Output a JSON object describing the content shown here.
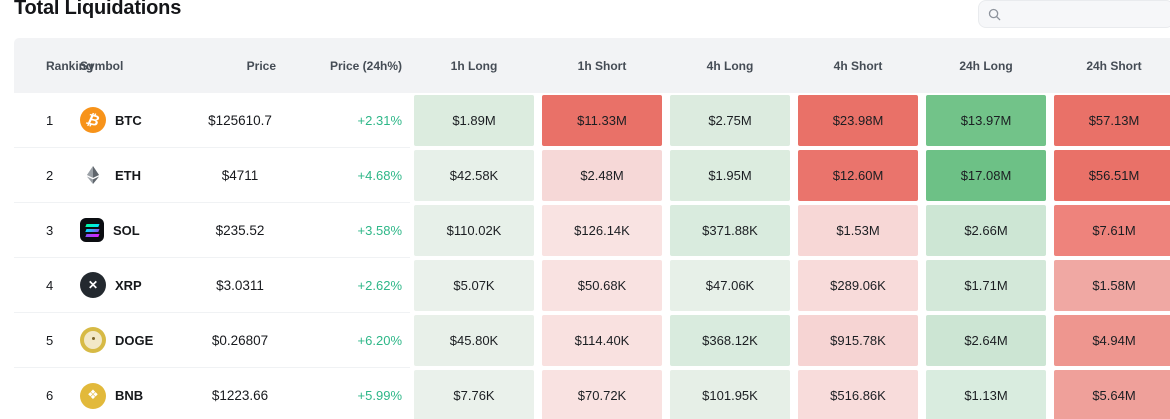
{
  "page": {
    "title": "Total Liquidations"
  },
  "search": {
    "placeholder": "",
    "icon": "search-icon"
  },
  "colors": {
    "positive_change": "#2eb788",
    "long_full": "#72c389",
    "short_full": "#e97168",
    "header_bg": "#f2f3f5"
  },
  "table": {
    "columns": [
      "Ranking",
      "Symbol",
      "Price",
      "Price (24h%)",
      "1h Long",
      "1h Short",
      "4h Long",
      "4h Short",
      "24h Long",
      "24h Short"
    ],
    "rows": [
      {
        "rank": "1",
        "symbol": "BTC",
        "icon": "btc-icon",
        "price": "$125610.7",
        "change": "+2.31%",
        "cells": [
          {
            "text": "$1.89M",
            "bg": "#dcecdf"
          },
          {
            "text": "$11.33M",
            "bg": "#e97168"
          },
          {
            "text": "$2.75M",
            "bg": "#dcebdf"
          },
          {
            "text": "$23.98M",
            "bg": "#e97168"
          },
          {
            "text": "$13.97M",
            "bg": "#72c389"
          },
          {
            "text": "$57.13M",
            "bg": "#e97168"
          }
        ]
      },
      {
        "rank": "2",
        "symbol": "ETH",
        "icon": "eth-icon",
        "price": "$4711",
        "change": "+4.68%",
        "cells": [
          {
            "text": "$42.58K",
            "bg": "#e7f0e9"
          },
          {
            "text": "$2.48M",
            "bg": "#f6d8d7"
          },
          {
            "text": "$1.95M",
            "bg": "#dcecdf"
          },
          {
            "text": "$12.60M",
            "bg": "#ea746c"
          },
          {
            "text": "$17.08M",
            "bg": "#6dc186"
          },
          {
            "text": "$56.51M",
            "bg": "#e97168"
          }
        ]
      },
      {
        "rank": "3",
        "symbol": "SOL",
        "icon": "sol-icon",
        "price": "$235.52",
        "change": "+3.58%",
        "cells": [
          {
            "text": "$110.02K",
            "bg": "#e7f0e9"
          },
          {
            "text": "$126.14K",
            "bg": "#f9e3e2"
          },
          {
            "text": "$371.88K",
            "bg": "#d9ebde"
          },
          {
            "text": "$1.53M",
            "bg": "#f7d7d6"
          },
          {
            "text": "$2.66M",
            "bg": "#cde6d4"
          },
          {
            "text": "$7.61M",
            "bg": "#ee837c"
          }
        ]
      },
      {
        "rank": "4",
        "symbol": "XRP",
        "icon": "xrp-icon",
        "price": "$3.0311",
        "change": "+2.62%",
        "cells": [
          {
            "text": "$5.07K",
            "bg": "#eaf1eb"
          },
          {
            "text": "$50.68K",
            "bg": "#f9e2e1"
          },
          {
            "text": "$47.06K",
            "bg": "#e7f0e8"
          },
          {
            "text": "$289.06K",
            "bg": "#f8dbda"
          },
          {
            "text": "$1.71M",
            "bg": "#d3e8d9"
          },
          {
            "text": "$1.58M",
            "bg": "#f0a8a3"
          }
        ]
      },
      {
        "rank": "5",
        "symbol": "DOGE",
        "icon": "doge-icon",
        "price": "$0.26807",
        "change": "+6.20%",
        "cells": [
          {
            "text": "$45.80K",
            "bg": "#e8f0e9"
          },
          {
            "text": "$114.40K",
            "bg": "#f9e1e0"
          },
          {
            "text": "$368.12K",
            "bg": "#d9ebde"
          },
          {
            "text": "$915.78K",
            "bg": "#f6d4d3"
          },
          {
            "text": "$2.64M",
            "bg": "#cce5d3"
          },
          {
            "text": "$4.94M",
            "bg": "#ee968f"
          }
        ]
      },
      {
        "rank": "6",
        "symbol": "BNB",
        "icon": "bnb-icon",
        "price": "$1223.66",
        "change": "+5.99%",
        "cells": [
          {
            "text": "$7.76K",
            "bg": "#eaf1eb"
          },
          {
            "text": "$70.72K",
            "bg": "#f9e2e1"
          },
          {
            "text": "$101.95K",
            "bg": "#e6efe7"
          },
          {
            "text": "$516.86K",
            "bg": "#f8dcdb"
          },
          {
            "text": "$1.13M",
            "bg": "#d9ecdf"
          },
          {
            "text": "$5.64M",
            "bg": "#efa09a"
          }
        ]
      }
    ]
  }
}
